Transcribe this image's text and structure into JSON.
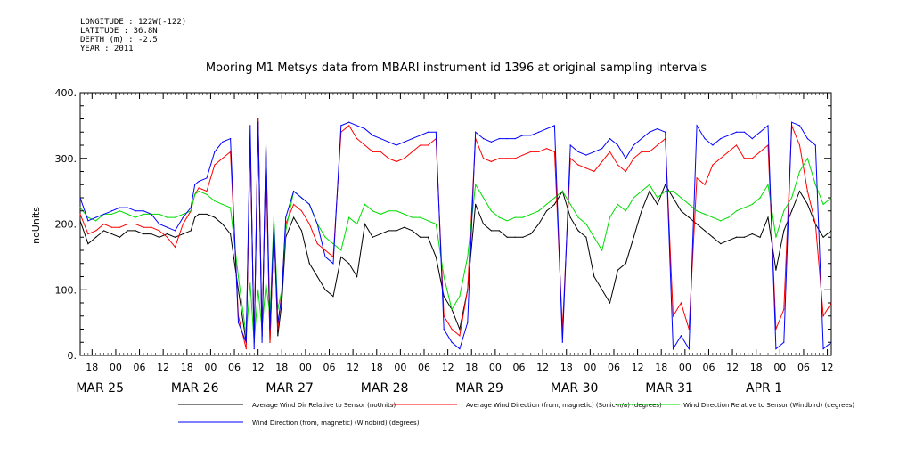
{
  "meta": {
    "longitude": "LONGITUDE : 122W(-122)",
    "latitude": "LATITUDE : 36.8N",
    "depth": "DEPTH (m) : -2.5",
    "year": "YEAR : 2011"
  },
  "chart_data": {
    "type": "line",
    "title": "Mooring M1 Metsys data from MBARI instrument id 1396 at original sampling intervals",
    "ylabel": "noUnits",
    "ylim": [
      0,
      400
    ],
    "yticks": [
      "0.",
      "100.",
      "200.",
      "300.",
      "400."
    ],
    "xlim": [
      15,
      205
    ],
    "hour_ticks": [
      {
        "t": 18,
        "label": "18"
      },
      {
        "t": 24,
        "label": "00"
      },
      {
        "t": 30,
        "label": "06"
      },
      {
        "t": 36,
        "label": "12"
      },
      {
        "t": 42,
        "label": "18"
      },
      {
        "t": 48,
        "label": "00"
      },
      {
        "t": 54,
        "label": "06"
      },
      {
        "t": 60,
        "label": "12"
      },
      {
        "t": 66,
        "label": "18"
      },
      {
        "t": 72,
        "label": "00"
      },
      {
        "t": 78,
        "label": "06"
      },
      {
        "t": 84,
        "label": "12"
      },
      {
        "t": 90,
        "label": "18"
      },
      {
        "t": 96,
        "label": "00"
      },
      {
        "t": 102,
        "label": "06"
      },
      {
        "t": 108,
        "label": "12"
      },
      {
        "t": 114,
        "label": "18"
      },
      {
        "t": 120,
        "label": "00"
      },
      {
        "t": 126,
        "label": "06"
      },
      {
        "t": 132,
        "label": "12"
      },
      {
        "t": 138,
        "label": "18"
      },
      {
        "t": 144,
        "label": "00"
      },
      {
        "t": 150,
        "label": "06"
      },
      {
        "t": 156,
        "label": "12"
      },
      {
        "t": 162,
        "label": "18"
      },
      {
        "t": 168,
        "label": "00"
      },
      {
        "t": 174,
        "label": "06"
      },
      {
        "t": 180,
        "label": "12"
      },
      {
        "t": 186,
        "label": "18"
      },
      {
        "t": 192,
        "label": "00"
      },
      {
        "t": 198,
        "label": "06"
      },
      {
        "t": 204,
        "label": "12"
      }
    ],
    "date_ticks": [
      {
        "t": 20,
        "label": "MAR 25"
      },
      {
        "t": 44,
        "label": "MAR 26"
      },
      {
        "t": 68,
        "label": "MAR 27"
      },
      {
        "t": 92,
        "label": "MAR 28"
      },
      {
        "t": 116,
        "label": "MAR 29"
      },
      {
        "t": 140,
        "label": "MAR 30"
      },
      {
        "t": 164,
        "label": "MAR 31"
      },
      {
        "t": 188,
        "label": "APR  1"
      }
    ],
    "series": [
      {
        "name": "Average Wind Dir Relative to Sensor (noUnits)",
        "color": "#000000",
        "x": [
          15,
          17,
          19,
          21,
          23,
          25,
          27,
          29,
          31,
          33,
          35,
          37,
          39,
          41,
          43,
          44,
          45,
          47,
          49,
          51,
          53,
          55,
          57,
          58,
          59,
          60,
          61,
          62,
          63,
          64,
          65,
          66,
          67,
          69,
          71,
          73,
          75,
          77,
          79,
          81,
          83,
          85,
          87,
          89,
          91,
          93,
          95,
          97,
          99,
          101,
          103,
          105,
          107,
          109,
          111,
          113,
          115,
          117,
          119,
          121,
          123,
          125,
          127,
          129,
          131,
          133,
          135,
          137,
          139,
          141,
          143,
          145,
          147,
          149,
          151,
          153,
          155,
          157,
          159,
          161,
          163,
          165,
          167,
          169,
          171,
          173,
          175,
          177,
          179,
          181,
          183,
          185,
          187,
          189,
          191,
          193,
          195,
          197,
          199,
          201,
          203,
          205
        ],
        "y": [
          205,
          170,
          180,
          190,
          185,
          180,
          190,
          190,
          185,
          185,
          180,
          185,
          180,
          185,
          190,
          210,
          215,
          215,
          210,
          200,
          185,
          100,
          20,
          330,
          20,
          360,
          30,
          320,
          20,
          200,
          30,
          80,
          180,
          210,
          190,
          140,
          120,
          100,
          90,
          150,
          140,
          120,
          200,
          180,
          185,
          190,
          190,
          195,
          190,
          180,
          180,
          150,
          90,
          70,
          40,
          100,
          230,
          200,
          190,
          190,
          180,
          180,
          180,
          185,
          200,
          220,
          230,
          250,
          210,
          190,
          180,
          120,
          100,
          80,
          130,
          140,
          180,
          220,
          250,
          230,
          260,
          240,
          220,
          210,
          200,
          190,
          180,
          170,
          175,
          180,
          180,
          185,
          180,
          210,
          130,
          190,
          220,
          250,
          230,
          200,
          180,
          190
        ]
      },
      {
        "name": "Average Wind Direction (from, magnetic) (Sonic-n/a) (degrees)",
        "color": "#ff0000",
        "x": [
          15,
          17,
          19,
          21,
          23,
          25,
          27,
          29,
          31,
          33,
          35,
          37,
          39,
          41,
          43,
          44,
          45,
          47,
          49,
          51,
          53,
          55,
          57,
          58,
          59,
          60,
          61,
          62,
          63,
          64,
          65,
          66,
          67,
          69,
          71,
          73,
          75,
          77,
          79,
          81,
          83,
          85,
          87,
          89,
          91,
          93,
          95,
          97,
          99,
          101,
          103,
          105,
          107,
          109,
          111,
          113,
          115,
          117,
          119,
          121,
          123,
          125,
          127,
          129,
          131,
          133,
          135,
          137,
          139,
          141,
          143,
          145,
          147,
          149,
          151,
          153,
          155,
          157,
          159,
          161,
          163,
          165,
          167,
          169,
          171,
          173,
          175,
          177,
          179,
          181,
          183,
          185,
          187,
          189,
          191,
          193,
          195,
          197,
          199,
          201,
          203,
          205
        ],
        "y": [
          215,
          185,
          190,
          200,
          195,
          195,
          200,
          200,
          195,
          195,
          190,
          180,
          165,
          200,
          220,
          245,
          255,
          250,
          290,
          300,
          310,
          60,
          10,
          330,
          20,
          360,
          30,
          300,
          20,
          200,
          40,
          100,
          200,
          230,
          220,
          200,
          170,
          160,
          150,
          340,
          350,
          330,
          320,
          310,
          310,
          300,
          295,
          300,
          310,
          320,
          320,
          330,
          60,
          40,
          30,
          100,
          330,
          300,
          295,
          300,
          300,
          300,
          305,
          310,
          310,
          315,
          310,
          40,
          300,
          290,
          285,
          280,
          295,
          310,
          290,
          280,
          300,
          310,
          310,
          320,
          330,
          60,
          80,
          40,
          270,
          260,
          290,
          300,
          310,
          320,
          300,
          300,
          310,
          320,
          40,
          70,
          350,
          320,
          250,
          200,
          60,
          80
        ]
      },
      {
        "name": "Wind Direction Relative to Sensor (Windbird) (degrees)",
        "color": "#00dd00",
        "x": [
          15,
          17,
          19,
          21,
          23,
          25,
          27,
          29,
          31,
          33,
          35,
          37,
          39,
          41,
          43,
          44,
          45,
          47,
          49,
          51,
          53,
          55,
          57,
          58,
          59,
          60,
          61,
          62,
          63,
          64,
          65,
          66,
          67,
          69,
          71,
          73,
          75,
          77,
          79,
          81,
          83,
          85,
          87,
          89,
          91,
          93,
          95,
          97,
          99,
          101,
          103,
          105,
          107,
          109,
          111,
          113,
          115,
          117,
          119,
          121,
          123,
          125,
          127,
          129,
          131,
          133,
          135,
          137,
          139,
          141,
          143,
          145,
          147,
          149,
          151,
          153,
          155,
          157,
          159,
          161,
          163,
          165,
          167,
          169,
          171,
          173,
          175,
          177,
          179,
          181,
          183,
          185,
          187,
          189,
          191,
          193,
          195,
          197,
          199,
          201,
          203,
          205
        ],
        "y": [
          225,
          210,
          205,
          215,
          215,
          220,
          215,
          210,
          215,
          215,
          215,
          210,
          210,
          215,
          220,
          245,
          250,
          245,
          235,
          230,
          225,
          120,
          30,
          110,
          20,
          100,
          40,
          110,
          60,
          210,
          70,
          100,
          190,
          250,
          240,
          230,
          200,
          180,
          170,
          160,
          210,
          200,
          230,
          220,
          215,
          220,
          220,
          215,
          210,
          210,
          205,
          200,
          120,
          70,
          90,
          150,
          260,
          240,
          220,
          210,
          205,
          210,
          210,
          215,
          220,
          230,
          240,
          250,
          230,
          210,
          200,
          180,
          160,
          210,
          230,
          220,
          240,
          250,
          260,
          240,
          250,
          250,
          240,
          230,
          220,
          215,
          210,
          205,
          210,
          220,
          225,
          230,
          240,
          260,
          180,
          220,
          240,
          280,
          300,
          260,
          230,
          240
        ]
      },
      {
        "name": "Wind Direction (from, magnetic) (Windbird) (degrees)",
        "color": "#0000ff",
        "x": [
          15,
          17,
          19,
          21,
          23,
          25,
          27,
          29,
          31,
          33,
          35,
          37,
          39,
          41,
          43,
          44,
          45,
          47,
          49,
          51,
          53,
          55,
          57,
          58,
          59,
          60,
          61,
          62,
          63,
          64,
          65,
          66,
          67,
          69,
          71,
          73,
          75,
          77,
          79,
          81,
          83,
          85,
          87,
          89,
          91,
          93,
          95,
          97,
          99,
          101,
          103,
          105,
          107,
          109,
          111,
          113,
          115,
          117,
          119,
          121,
          123,
          125,
          127,
          129,
          131,
          133,
          135,
          137,
          139,
          141,
          143,
          145,
          147,
          149,
          151,
          153,
          155,
          157,
          159,
          161,
          163,
          165,
          167,
          169,
          171,
          173,
          175,
          177,
          179,
          181,
          183,
          185,
          187,
          189,
          191,
          193,
          195,
          197,
          199,
          201,
          203,
          205
        ],
        "y": [
          240,
          205,
          210,
          215,
          220,
          225,
          225,
          220,
          220,
          215,
          200,
          195,
          190,
          210,
          225,
          260,
          265,
          270,
          310,
          325,
          330,
          50,
          20,
          350,
          10,
          355,
          20,
          320,
          40,
          200,
          50,
          90,
          210,
          250,
          240,
          230,
          200,
          150,
          140,
          350,
          355,
          350,
          345,
          335,
          330,
          325,
          320,
          325,
          330,
          335,
          340,
          340,
          40,
          20,
          10,
          50,
          340,
          330,
          325,
          330,
          330,
          330,
          335,
          335,
          340,
          345,
          350,
          20,
          320,
          310,
          305,
          310,
          315,
          330,
          320,
          300,
          320,
          330,
          340,
          345,
          340,
          10,
          30,
          10,
          350,
          330,
          320,
          330,
          335,
          340,
          340,
          330,
          340,
          350,
          10,
          20,
          355,
          350,
          330,
          320,
          10,
          20
        ]
      }
    ],
    "legend": [
      {
        "label": "Average Wind Dir Relative to Sensor (noUnits)",
        "color": "#000000"
      },
      {
        "label": "Average Wind Direction (from, magnetic) (Sonic-n/a) (degrees)",
        "color": "#ff0000"
      },
      {
        "label": "Wind Direction Relative to Sensor (Windbird) (degrees)",
        "color": "#00dd00"
      },
      {
        "label": "Wind Direction (from, magnetic) (Windbird) (degrees)",
        "color": "#0000ff"
      }
    ]
  }
}
